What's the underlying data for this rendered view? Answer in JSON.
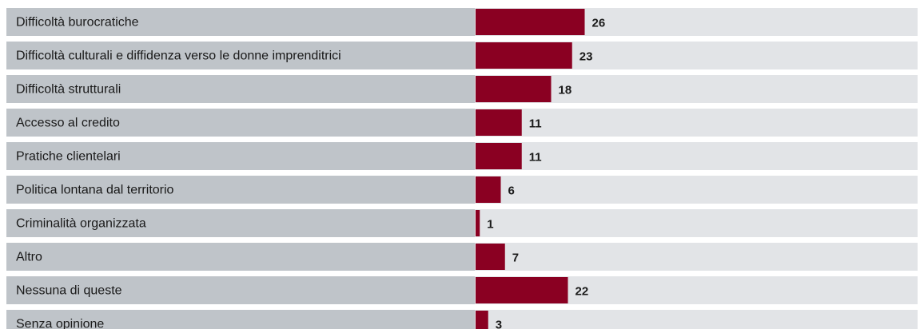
{
  "chart_data": {
    "type": "bar",
    "orientation": "horizontal",
    "categories": [
      "Difficoltà burocratiche",
      "Difficoltà culturali e diffidenza verso le donne imprenditrici",
      "Difficoltà strutturali",
      "Accesso al credito",
      "Pratiche clientelari",
      "Politica lontana dal territorio",
      "Criminalità organizzata",
      "Altro",
      "Nessuna di queste",
      "Senza opinione"
    ],
    "values": [
      26,
      23,
      18,
      11,
      11,
      6,
      1,
      7,
      22,
      3
    ],
    "value_labels": [
      "26",
      "23",
      "18",
      "11",
      "11",
      "6",
      "1",
      "7",
      "22",
      "3"
    ],
    "xlim": [
      0,
      100
    ],
    "grid": false,
    "legend": "none"
  },
  "colors": {
    "label_band": "#bfc4c9",
    "track_band": "#e2e4e7",
    "bar": "#8a0022",
    "text": "#1a1a1a"
  }
}
